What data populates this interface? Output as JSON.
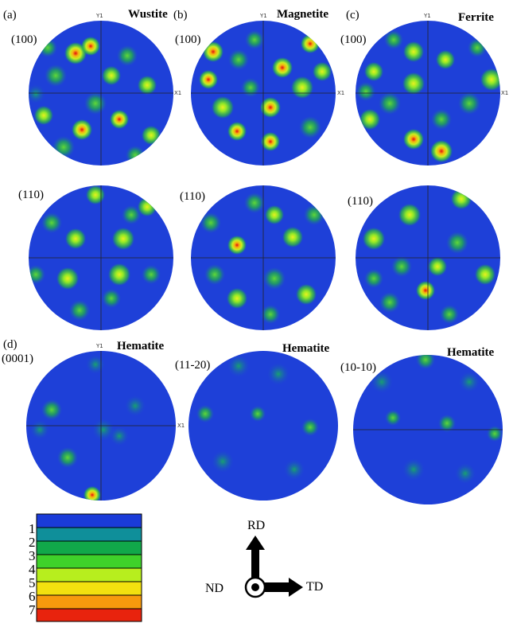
{
  "panels": {
    "a": {
      "letter": "(a)",
      "phase": "Wustite"
    },
    "b": {
      "letter": "(b)",
      "phase": "Magnetite"
    },
    "c": {
      "letter": "(c)",
      "phase": "Ferrite"
    },
    "d": {
      "letter": "(d)",
      "phase": "Hematite"
    }
  },
  "planes": {
    "p100": "(100)",
    "p110": "(110)",
    "p0001": "(0001)",
    "p1120": "(11-20)",
    "p1010": "(10-10)"
  },
  "hematite_label": "Hematite",
  "axes": {
    "y": "Y1",
    "x": "X1"
  },
  "colorbar": {
    "labels": [
      "1",
      "2",
      "3",
      "4",
      "5",
      "6",
      "7"
    ],
    "colors": [
      "#1a3bd8",
      "#0f8f9a",
      "#11a84a",
      "#3fd12a",
      "#b7ee1e",
      "#f2e10f",
      "#f79a0d",
      "#e8230d"
    ]
  },
  "directions": {
    "rd": "RD",
    "td": "TD",
    "nd": "ND"
  }
}
